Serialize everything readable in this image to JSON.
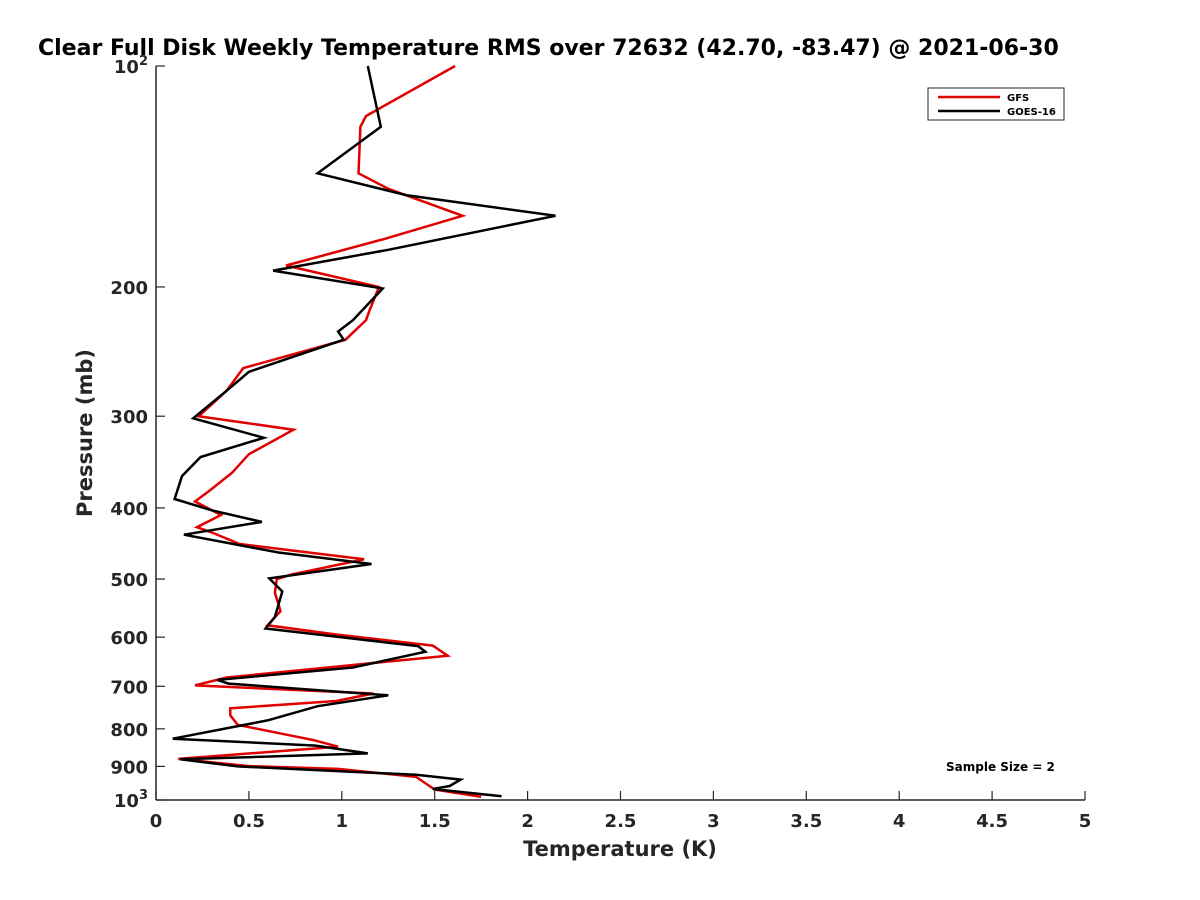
{
  "chart_data": {
    "type": "line",
    "title": "Clear Full Disk Weekly Temperature RMS over 72632 (42.70, -83.47) @ 2021-06-30",
    "xlabel": "Temperature (K)",
    "ylabel": "Pressure (mb)",
    "xlim": [
      0,
      5
    ],
    "ylim": [
      1000,
      100
    ],
    "y_scale": "log",
    "y_reversed": true,
    "grid": false,
    "legend_position": "top-right",
    "x_ticks": [
      {
        "value": 0,
        "label": "0"
      },
      {
        "value": 0.5,
        "label": "0.5"
      },
      {
        "value": 1,
        "label": "1"
      },
      {
        "value": 1.5,
        "label": "1.5"
      },
      {
        "value": 2,
        "label": "2"
      },
      {
        "value": 2.5,
        "label": "2.5"
      },
      {
        "value": 3,
        "label": "3"
      },
      {
        "value": 3.5,
        "label": "3.5"
      },
      {
        "value": 4,
        "label": "4"
      },
      {
        "value": 4.5,
        "label": "4.5"
      },
      {
        "value": 5,
        "label": "5"
      }
    ],
    "y_ticks": [
      {
        "value": 100,
        "label": "10",
        "exponent": "2"
      },
      {
        "value": 200,
        "label": "200"
      },
      {
        "value": 300,
        "label": "300"
      },
      {
        "value": 400,
        "label": "400"
      },
      {
        "value": 500,
        "label": "500"
      },
      {
        "value": 600,
        "label": "600"
      },
      {
        "value": 700,
        "label": "700"
      },
      {
        "value": 800,
        "label": "800"
      },
      {
        "value": 900,
        "label": "900"
      },
      {
        "value": 1000,
        "label": "10",
        "exponent": "3"
      }
    ],
    "annotation": "Sample Size = 2",
    "series": [
      {
        "name": "GFS",
        "color": "#e00000",
        "points": [
          [
            1.61,
            100
          ],
          [
            1.13,
            117
          ],
          [
            1.1,
            121
          ],
          [
            1.09,
            140
          ],
          [
            1.25,
            147
          ],
          [
            1.65,
            160
          ],
          [
            1.23,
            172
          ],
          [
            0.7,
            187
          ],
          [
            1.2,
            200
          ],
          [
            1.15,
            215
          ],
          [
            1.13,
            222
          ],
          [
            1.02,
            236
          ],
          [
            0.47,
            258
          ],
          [
            0.44,
            264
          ],
          [
            0.38,
            277
          ],
          [
            0.23,
            300
          ],
          [
            0.74,
            313
          ],
          [
            0.5,
            338
          ],
          [
            0.41,
            358
          ],
          [
            0.3,
            377
          ],
          [
            0.21,
            392
          ],
          [
            0.35,
            409
          ],
          [
            0.22,
            425
          ],
          [
            0.3,
            432
          ],
          [
            0.45,
            448
          ],
          [
            0.7,
            456
          ],
          [
            1.12,
            470
          ],
          [
            0.73,
            493
          ],
          [
            0.65,
            500
          ],
          [
            0.64,
            522
          ],
          [
            0.67,
            553
          ],
          [
            0.6,
            578
          ],
          [
            0.97,
            595
          ],
          [
            1.49,
            616
          ],
          [
            1.57,
            636
          ],
          [
            0.38,
            681
          ],
          [
            0.21,
            698
          ],
          [
            1.17,
            716
          ],
          [
            0.97,
            733
          ],
          [
            0.4,
            750
          ],
          [
            0.4,
            767
          ],
          [
            0.44,
            790
          ],
          [
            0.85,
            829
          ],
          [
            0.98,
            846
          ],
          [
            0.12,
            879
          ],
          [
            0.5,
            899
          ],
          [
            0.98,
            907
          ],
          [
            1.4,
            930
          ],
          [
            1.5,
            968
          ],
          [
            1.75,
            990
          ]
        ]
      },
      {
        "name": "GOES-16",
        "color": "#000000",
        "points": [
          [
            1.14,
            100
          ],
          [
            1.21,
            121
          ],
          [
            0.87,
            140
          ],
          [
            1.35,
            150
          ],
          [
            2.15,
            160
          ],
          [
            1.25,
            178
          ],
          [
            0.63,
            190
          ],
          [
            1.22,
            201
          ],
          [
            1.06,
            222
          ],
          [
            0.98,
            230
          ],
          [
            1.01,
            236
          ],
          [
            0.5,
            261
          ],
          [
            0.41,
            273
          ],
          [
            0.2,
            302
          ],
          [
            0.58,
            321
          ],
          [
            0.24,
            341
          ],
          [
            0.14,
            362
          ],
          [
            0.1,
            389
          ],
          [
            0.3,
            403
          ],
          [
            0.57,
            418
          ],
          [
            0.15,
            435
          ],
          [
            0.66,
            460
          ],
          [
            1.16,
            477
          ],
          [
            0.61,
            499
          ],
          [
            0.68,
            520
          ],
          [
            0.64,
            563
          ],
          [
            0.59,
            584
          ],
          [
            1.41,
            617
          ],
          [
            1.45,
            628
          ],
          [
            1.06,
            660
          ],
          [
            0.33,
            686
          ],
          [
            0.39,
            694
          ],
          [
            1.25,
            720
          ],
          [
            0.87,
            745
          ],
          [
            0.6,
            779
          ],
          [
            0.09,
            825
          ],
          [
            0.86,
            843
          ],
          [
            1.14,
            864
          ],
          [
            0.13,
            880
          ],
          [
            0.44,
            900
          ],
          [
            1.4,
            924
          ],
          [
            1.64,
            938
          ],
          [
            1.58,
            957
          ],
          [
            1.49,
            966
          ],
          [
            1.86,
            988
          ]
        ]
      }
    ]
  }
}
